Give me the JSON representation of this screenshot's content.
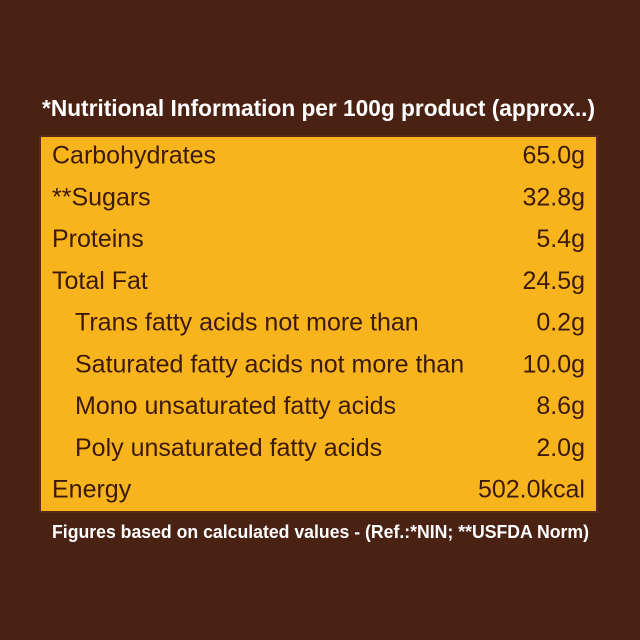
{
  "header": {
    "title": "*Nutritional Information per 100g product (approx..)"
  },
  "table": {
    "rows": [
      {
        "label": "Carbohydrates",
        "value": "65.0g"
      },
      {
        "label": "**Sugars",
        "value": "32.8g"
      },
      {
        "label": "Proteins",
        "value": "5.4g"
      },
      {
        "label": "Total Fat",
        "value": "24.5g",
        "sub_rows": [
          {
            "label": "Trans fatty acids not more than",
            "value": "0.2g"
          },
          {
            "label": "Saturated fatty acids not more than",
            "value": "10.0g"
          },
          {
            "label": "Mono unsaturated fatty acids",
            "value": "8.6g"
          },
          {
            "label": "Poly unsaturated fatty acids",
            "value": "2.0g"
          }
        ]
      },
      {
        "label": "Energy",
        "value": "502.0kcal"
      }
    ]
  },
  "footer": {
    "note": "Figures based on calculated values - (Ref.:*NIN; **USFDA Norm)"
  }
}
